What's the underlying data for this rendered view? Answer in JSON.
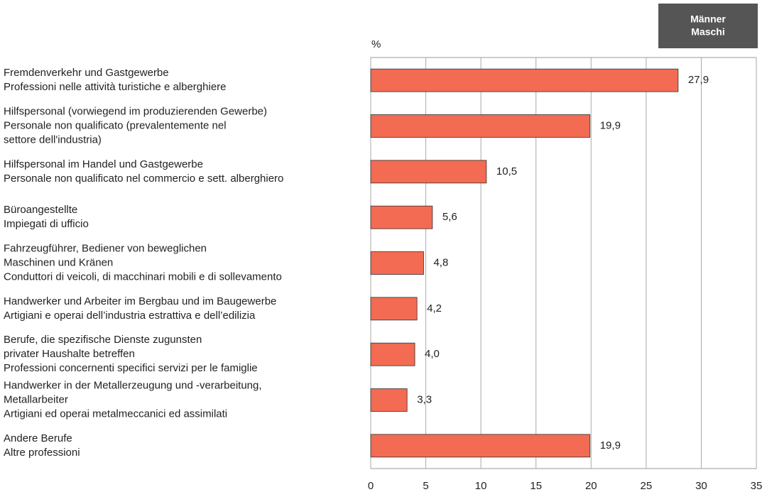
{
  "chart_data": {
    "type": "hbar",
    "legend": [
      "Männer",
      "Maschi"
    ],
    "value_axis_label": "%",
    "categories": [
      [
        "Fremdenverkehr und Gastgewerbe",
        "Professioni nelle attività turistiche e alberghiere"
      ],
      [
        "Hilfspersonal (vorwiegend im produzierenden Gewerbe)",
        "Personale non qualificato (prevalentemente nel",
        "settore dell'industria)"
      ],
      [
        "Hilfspersonal im Handel und Gastgewerbe",
        "Personale non qualificato nel commercio e sett. alberghiero"
      ],
      [
        "Büroangestellte",
        "Impiegati di ufficio"
      ],
      [
        "Fahrzeugführer, Bediener von beweglichen",
        "Maschinen und Kränen",
        "Conduttori di veicoli, di macchinari mobili e di sollevamento"
      ],
      [
        "Handwerker und Arbeiter im Bergbau und im Baugewerbe",
        "Artigiani e operai dell’industria estrattiva e dell’edilizia"
      ],
      [
        "Berufe, die spezifische Dienste zugunsten",
        "privater Haushalte betreffen",
        "Professioni concernenti specifici servizi per le famiglie"
      ],
      [
        "Handwerker in der Metallerzeugung und -verarbeitung,",
        "Metallarbeiter",
        "Artigiani ed operai metalmeccanici ed assimilati"
      ],
      [
        "Andere Berufe",
        "Altre professioni"
      ]
    ],
    "values": [
      27.9,
      19.9,
      10.5,
      5.6,
      4.8,
      4.2,
      4.0,
      3.3,
      19.9
    ],
    "value_labels": [
      "27,9",
      "19,9",
      "10,5",
      "5,6",
      "4,8",
      "4,2",
      "4,0",
      "3,3",
      "19,9"
    ],
    "color": "#f26b52",
    "xlim": [
      0,
      35
    ],
    "xticks": [
      0,
      5,
      10,
      15,
      20,
      25,
      30,
      35
    ],
    "grid": true
  }
}
